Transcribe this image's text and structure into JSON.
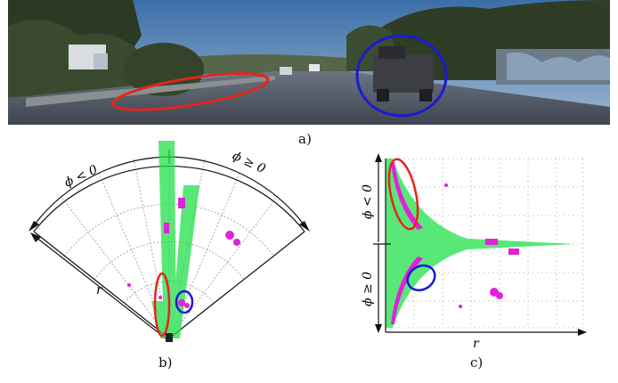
{
  "panels": {
    "a": {
      "caption": "a)"
    },
    "b": {
      "caption": "b)",
      "label_phi_neg": "ϕ < 0",
      "label_phi_pos": "ϕ ≥ 0",
      "label_r": "r"
    },
    "c": {
      "caption": "c)",
      "label_phi_neg": "ϕ < 0",
      "label_phi_pos": "ϕ ≥ 0",
      "label_r": "r"
    }
  },
  "colors": {
    "guardrail_ellipse": "#e8231c",
    "vehicle_ellipse": "#1a1ad4",
    "lidar_points": "#22e04a",
    "detections": "#e022d8"
  }
}
